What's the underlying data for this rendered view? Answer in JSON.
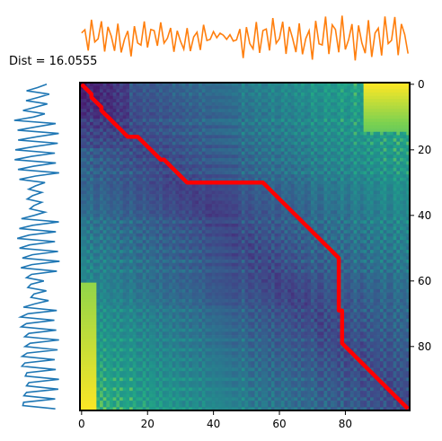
{
  "chart_data": {
    "type": "heatmap",
    "title": "Dist = 16.0555",
    "description": "Dynamic time warping cost matrix with warping path and the two input signals",
    "matrix": {
      "rows": 100,
      "cols": 100,
      "colormap": "viridis",
      "xlim": [
        0,
        99
      ],
      "ylim": [
        99,
        0
      ],
      "xticks": [
        0,
        20,
        40,
        60,
        80
      ],
      "yticks": [
        0,
        20,
        40,
        60,
        80
      ],
      "yaxis_side": "right"
    },
    "warping_path": {
      "color": "#ff0000",
      "waypoints": [
        [
          0,
          0
        ],
        [
          5,
          6
        ],
        [
          7,
          9
        ],
        [
          14,
          16
        ],
        [
          17,
          16
        ],
        [
          32,
          30
        ],
        [
          55,
          30
        ],
        [
          78,
          53
        ],
        [
          78,
          69
        ],
        [
          79,
          69
        ],
        [
          79,
          79
        ],
        [
          97,
          97
        ],
        [
          99,
          99
        ]
      ]
    },
    "top_signal": {
      "color": "#ff7f0e",
      "length": 100,
      "ylim": [
        -1.1,
        1.1
      ]
    },
    "left_signal": {
      "color": "#1f77b4",
      "length": 100,
      "xlim": [
        -1.3,
        1.3
      ]
    }
  },
  "colors": {
    "path": "#ff0000",
    "top_signal": "#ff7f0e",
    "left_signal": "#1f77b4"
  }
}
